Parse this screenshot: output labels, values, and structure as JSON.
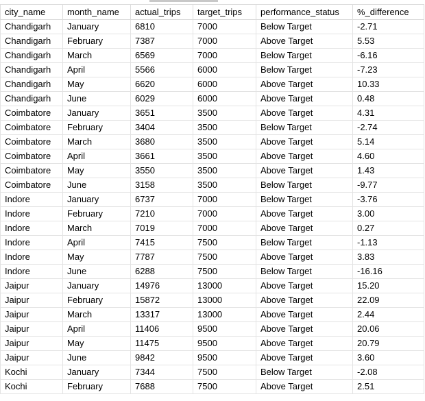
{
  "grid": {
    "columns": [
      "city_name",
      "month_name",
      "actual_trips",
      "target_trips",
      "performance_status",
      "%_difference"
    ],
    "rows": [
      [
        "Chandigarh",
        "January",
        "6810",
        "7000",
        "Below Target",
        "-2.71"
      ],
      [
        "Chandigarh",
        "February",
        "7387",
        "7000",
        "Above Target",
        "5.53"
      ],
      [
        "Chandigarh",
        "March",
        "6569",
        "7000",
        "Below Target",
        "-6.16"
      ],
      [
        "Chandigarh",
        "April",
        "5566",
        "6000",
        "Below Target",
        "-7.23"
      ],
      [
        "Chandigarh",
        "May",
        "6620",
        "6000",
        "Above Target",
        "10.33"
      ],
      [
        "Chandigarh",
        "June",
        "6029",
        "6000",
        "Above Target",
        "0.48"
      ],
      [
        "Coimbatore",
        "January",
        "3651",
        "3500",
        "Above Target",
        "4.31"
      ],
      [
        "Coimbatore",
        "February",
        "3404",
        "3500",
        "Below Target",
        "-2.74"
      ],
      [
        "Coimbatore",
        "March",
        "3680",
        "3500",
        "Above Target",
        "5.14"
      ],
      [
        "Coimbatore",
        "April",
        "3661",
        "3500",
        "Above Target",
        "4.60"
      ],
      [
        "Coimbatore",
        "May",
        "3550",
        "3500",
        "Above Target",
        "1.43"
      ],
      [
        "Coimbatore",
        "June",
        "3158",
        "3500",
        "Below Target",
        "-9.77"
      ],
      [
        "Indore",
        "January",
        "6737",
        "7000",
        "Below Target",
        "-3.76"
      ],
      [
        "Indore",
        "February",
        "7210",
        "7000",
        "Above Target",
        "3.00"
      ],
      [
        "Indore",
        "March",
        "7019",
        "7000",
        "Above Target",
        "0.27"
      ],
      [
        "Indore",
        "April",
        "7415",
        "7500",
        "Below Target",
        "-1.13"
      ],
      [
        "Indore",
        "May",
        "7787",
        "7500",
        "Above Target",
        "3.83"
      ],
      [
        "Indore",
        "June",
        "6288",
        "7500",
        "Below Target",
        "-16.16"
      ],
      [
        "Jaipur",
        "January",
        "14976",
        "13000",
        "Above Target",
        "15.20"
      ],
      [
        "Jaipur",
        "February",
        "15872",
        "13000",
        "Above Target",
        "22.09"
      ],
      [
        "Jaipur",
        "March",
        "13317",
        "13000",
        "Above Target",
        "2.44"
      ],
      [
        "Jaipur",
        "April",
        "11406",
        "9500",
        "Above Target",
        "20.06"
      ],
      [
        "Jaipur",
        "May",
        "11475",
        "9500",
        "Above Target",
        "20.79"
      ],
      [
        "Jaipur",
        "June",
        "9842",
        "9500",
        "Above Target",
        "3.60"
      ],
      [
        "Kochi",
        "January",
        "7344",
        "7500",
        "Below Target",
        "-2.08"
      ],
      [
        "Kochi",
        "February",
        "7688",
        "7500",
        "Above Target",
        "2.51"
      ]
    ]
  }
}
